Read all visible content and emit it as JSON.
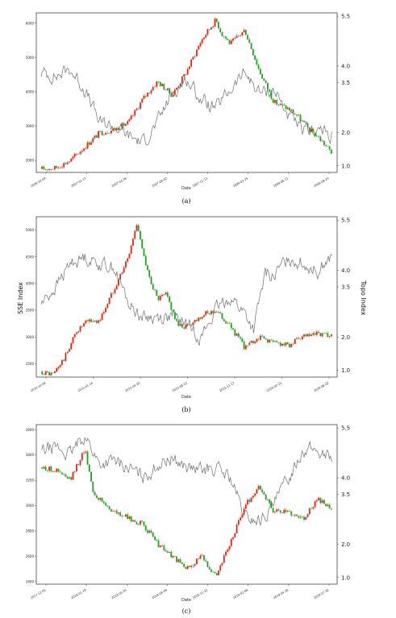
{
  "figure": {
    "captions": [
      "(a)",
      "(b)",
      "(c)"
    ]
  },
  "colors": {
    "up": "#e8200c",
    "down": "#1fa01f",
    "topo": "#6e6e6e",
    "frame": "#444444"
  },
  "chart_data": [
    {
      "type": "line",
      "caption": "(a)",
      "xlabel": "Date",
      "ylabel": "",
      "y2label": "",
      "x_ticks": [
        "2006-10-09",
        "2007-01-17",
        "2007-04-26",
        "2007-08-02",
        "2007-11-12",
        "2008-02-25",
        "2008-06-11",
        "2008-09-25"
      ],
      "y_ticks": [
        2000,
        3000,
        4000,
        5000,
        6000
      ],
      "y2_ticks": [
        1.0,
        2.0,
        3.5,
        4.0,
        5.5
      ],
      "ylim": [
        1650,
        6300
      ],
      "y2lim": [
        0.8,
        5.6
      ],
      "series": [
        {
          "name": "",
          "axis": "left",
          "style": "candlestick",
          "x_frac": [
            0,
            0.05,
            0.1,
            0.15,
            0.2,
            0.25,
            0.3,
            0.35,
            0.4,
            0.45,
            0.5,
            0.55,
            0.6,
            0.62,
            0.65,
            0.7,
            0.75,
            0.8,
            0.85,
            0.88,
            0.92,
            0.95,
            0.98,
            1
          ],
          "values": [
            1750,
            1780,
            2000,
            2400,
            2800,
            2900,
            3100,
            3800,
            4300,
            3900,
            4600,
            5500,
            6100,
            5700,
            5400,
            5800,
            4600,
            3700,
            3500,
            3300,
            2900,
            2700,
            2400,
            2200
          ]
        },
        {
          "name": "",
          "axis": "right",
          "style": "line",
          "x_frac": [
            0,
            0.05,
            0.1,
            0.15,
            0.2,
            0.25,
            0.3,
            0.35,
            0.4,
            0.45,
            0.5,
            0.55,
            0.6,
            0.65,
            0.7,
            0.75,
            0.8,
            0.85,
            0.9,
            0.95,
            1
          ],
          "values": [
            3.8,
            3.7,
            3.9,
            3.3,
            2.3,
            2.2,
            1.9,
            1.7,
            2.3,
            3.2,
            3.6,
            3.0,
            2.7,
            3.3,
            3.8,
            3.2,
            3.3,
            2.5,
            2.0,
            2.1,
            1.9
          ]
        }
      ]
    },
    {
      "type": "line",
      "caption": "(b)",
      "xlabel": "Date",
      "ylabel": "SSE Index",
      "y2label": "Topo Index",
      "x_ticks": [
        "2014-10-09",
        "2015-01-14",
        "2015-04-20",
        "2015-08-12",
        "2015-11-17",
        "2016-02-25",
        "2016-06-02"
      ],
      "y_ticks": [
        2500,
        3000,
        3500,
        4000,
        4500,
        5000
      ],
      "y2_ticks": [
        1.0,
        2.0,
        3.5,
        4.0,
        5.5
      ],
      "ylim": [
        2250,
        5250
      ],
      "y2lim": [
        0.8,
        5.6
      ],
      "series": [
        {
          "name": "",
          "axis": "left",
          "style": "candlestick",
          "x_frac": [
            0,
            0.04,
            0.08,
            0.12,
            0.16,
            0.2,
            0.25,
            0.3,
            0.33,
            0.36,
            0.4,
            0.43,
            0.47,
            0.5,
            0.55,
            0.6,
            0.65,
            0.7,
            0.75,
            0.8,
            0.85,
            0.9,
            0.95,
            1
          ],
          "values": [
            2350,
            2300,
            2600,
            3100,
            3300,
            3300,
            3900,
            4500,
            5150,
            4300,
            3700,
            3800,
            3200,
            3200,
            3400,
            3500,
            3200,
            2800,
            3000,
            2900,
            2850,
            3000,
            3050,
            3000
          ]
        },
        {
          "name": "",
          "axis": "right",
          "style": "line",
          "x_frac": [
            0,
            0.05,
            0.1,
            0.15,
            0.2,
            0.25,
            0.3,
            0.35,
            0.4,
            0.45,
            0.5,
            0.55,
            0.6,
            0.65,
            0.7,
            0.73,
            0.77,
            0.8,
            0.85,
            0.9,
            0.95,
            1
          ],
          "values": [
            3.0,
            3.5,
            4.2,
            4.4,
            4.2,
            4.1,
            3.0,
            2.6,
            2.6,
            2.6,
            2.4,
            2.0,
            2.8,
            3.2,
            2.7,
            2.2,
            3.9,
            3.8,
            4.4,
            4.2,
            4.0,
            4.4
          ]
        }
      ]
    },
    {
      "type": "line",
      "caption": "(c)",
      "xlabel": "Date",
      "ylabel": "",
      "y2label": "",
      "x_ticks": [
        "2017-12-05",
        "2018-01-19",
        "2018-05-25",
        "2018-08-09",
        "2018-11-22",
        "2019-02-08",
        "2019-04-26",
        "2019-07-30"
      ],
      "y_ticks": [
        2400,
        2600,
        2800,
        3000,
        3200,
        3400,
        3600
      ],
      "y2_ticks": [
        1.0,
        2.0,
        3.5,
        4.0,
        5.5
      ],
      "ylim": [
        2380,
        3640
      ],
      "y2lim": [
        0.8,
        5.6
      ],
      "series": [
        {
          "name": "",
          "axis": "left",
          "style": "candlestick",
          "x_frac": [
            0,
            0.05,
            0.1,
            0.15,
            0.18,
            0.2,
            0.25,
            0.3,
            0.35,
            0.4,
            0.45,
            0.5,
            0.55,
            0.6,
            0.65,
            0.7,
            0.75,
            0.8,
            0.85,
            0.9,
            0.95,
            1
          ],
          "values": [
            3300,
            3280,
            3200,
            3450,
            3100,
            3050,
            2950,
            2900,
            2850,
            2700,
            2600,
            2500,
            2600,
            2450,
            2700,
            3000,
            3150,
            2950,
            2950,
            2900,
            3050,
            2960
          ]
        },
        {
          "name": "",
          "axis": "right",
          "style": "line",
          "x_frac": [
            0,
            0.05,
            0.1,
            0.15,
            0.2,
            0.25,
            0.3,
            0.35,
            0.4,
            0.45,
            0.5,
            0.55,
            0.6,
            0.65,
            0.7,
            0.75,
            0.8,
            0.85,
            0.9,
            0.95,
            1
          ],
          "values": [
            4.8,
            4.9,
            4.7,
            5.3,
            4.4,
            4.5,
            4.3,
            4.0,
            4.4,
            4.6,
            4.3,
            4.2,
            4.3,
            4.0,
            2.8,
            2.7,
            3.2,
            4.0,
            4.9,
            4.8,
            4.6
          ]
        }
      ]
    }
  ]
}
